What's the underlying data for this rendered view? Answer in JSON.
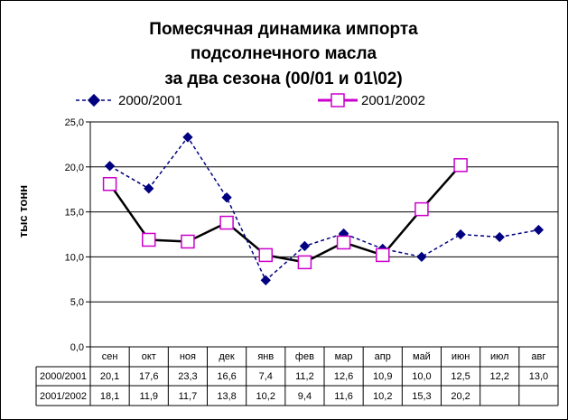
{
  "chart_data": {
    "type": "line",
    "title": [
      "Помесячная динамика импорта",
      "подсолнечного масла",
      "за два сезона (00/01 и 01\\02)"
    ],
    "ylabel": "тыс тонн",
    "xlabel": "",
    "ylim": [
      0,
      25
    ],
    "yticks": [
      "0,0",
      "5,0",
      "10,0",
      "15,0",
      "20,0",
      "25,0"
    ],
    "grid": true,
    "legend": "top",
    "categories": [
      "сен",
      "окт",
      "ноя",
      "дек",
      "янв",
      "фев",
      "мар",
      "апр",
      "май",
      "июн",
      "июл",
      "авг"
    ],
    "series": [
      {
        "name": "2000/2001",
        "values": [
          20.1,
          17.6,
          23.3,
          16.6,
          7.4,
          11.2,
          12.6,
          10.9,
          10.0,
          12.5,
          12.2,
          13.0
        ],
        "labels": [
          "20,1",
          "17,6",
          "23,3",
          "16,6",
          "7,4",
          "11,2",
          "12,6",
          "10,9",
          "10,0",
          "12,5",
          "12,2",
          "13,0"
        ],
        "color": "#000080",
        "line_color": "#000080",
        "style": "dashed",
        "marker": "diamond"
      },
      {
        "name": "2001/2002",
        "values": [
          18.1,
          11.9,
          11.7,
          13.8,
          10.2,
          9.4,
          11.6,
          10.2,
          15.3,
          20.2,
          null,
          null
        ],
        "labels": [
          "18,1",
          "11,9",
          "11,7",
          "13,8",
          "10,2",
          "9,4",
          "11,6",
          "10,2",
          "15,3",
          "20,2",
          "",
          ""
        ],
        "color": "#cc00cc",
        "line_color": "#000000",
        "style": "solid",
        "marker": "square"
      }
    ]
  }
}
